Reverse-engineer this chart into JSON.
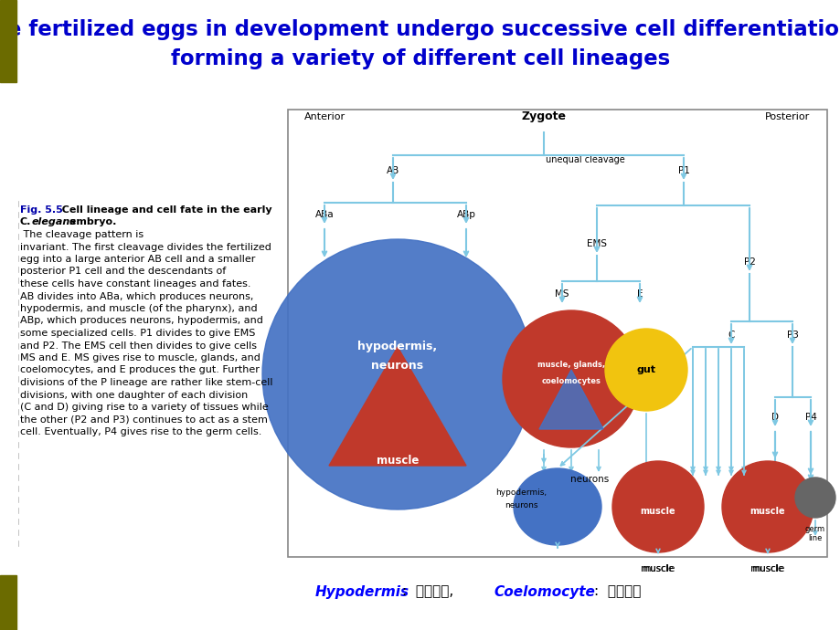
{
  "title_line1": "The fertilized eggs in development undergo successive cell differentiation,",
  "title_line2": "forming a variety of different cell lineages",
  "title_color": "#0000CC",
  "title_fontsize": 16.5,
  "bg_color": "#FFFFFF",
  "left_bar_color": "#6B6B00",
  "blue_circle_color": "#4472C4",
  "orange_red_color": "#C0392B",
  "gut_color": "#F1C40F",
  "muscle_color": "#C0392B",
  "arrow_color": "#7EC8E3",
  "caption_fontsize": 8.5,
  "fig_caption_normal": "Fig. 5.5  Cell lineage and cell fate in the early\nC. elegans embryo. The cleavage pattern is\ninvariant. The first cleavage divides the fertilized\negg into a large anterior AB cell and a smaller\nposterior P1 cell and the descendants of\nthese cells have constant lineages and fates.\nAB divides into ABa, which produces neurons,\nhypodermis, and muscle (of the pharynx), and\nABp, which produces neurons, hypodermis, and\nsome specialized cells. P1 divides to give EMS\nand P2. The EMS cell then divides to give cells\nMS and E. MS gives rise to muscle, glands, and\ncoelomocytes, and E produces the gut. Further\ndivisions of the P lineage are rather like stem-cell\ndivisions, with one daughter of each division\n(C and D) giving rise to a variety of tissues while\nthe other (P2 and P3) continues to act as a stem\ncell. Eventually, P4 gives rise to the germ cells."
}
